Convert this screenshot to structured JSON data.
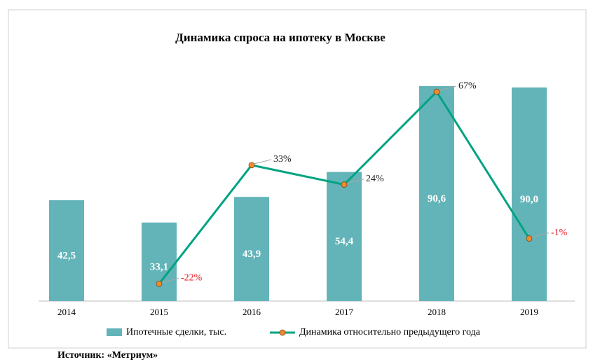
{
  "chart_data": {
    "type": "bar_line",
    "title": "Динамика спроса на ипотеку в Москве",
    "categories": [
      "2014",
      "2015",
      "2016",
      "2017",
      "2018",
      "2019"
    ],
    "series": [
      {
        "name": "Ипотечные сделки, тыс.",
        "type": "bar",
        "color": "#63b4b9",
        "values": [
          42.5,
          33.1,
          43.9,
          54.4,
          90.6,
          90.0
        ],
        "value_labels": [
          "42,5",
          "33,1",
          "43,9",
          "54,4",
          "90,6",
          "90,0"
        ]
      },
      {
        "name": "Динамика относительно предыдущего года",
        "type": "line",
        "axis": "y2",
        "color": "#00a382",
        "marker_color": "#f08a2c",
        "values": [
          null,
          -22,
          33,
          24,
          67,
          -1
        ],
        "value_labels": [
          null,
          "-22%",
          "33%",
          "24%",
          "67%",
          "-1%"
        ]
      }
    ],
    "ylim": [
      0,
      100
    ],
    "y2lim": [
      -30,
      80
    ],
    "legend": "bottom",
    "source": "Источник: «Метриум»"
  }
}
